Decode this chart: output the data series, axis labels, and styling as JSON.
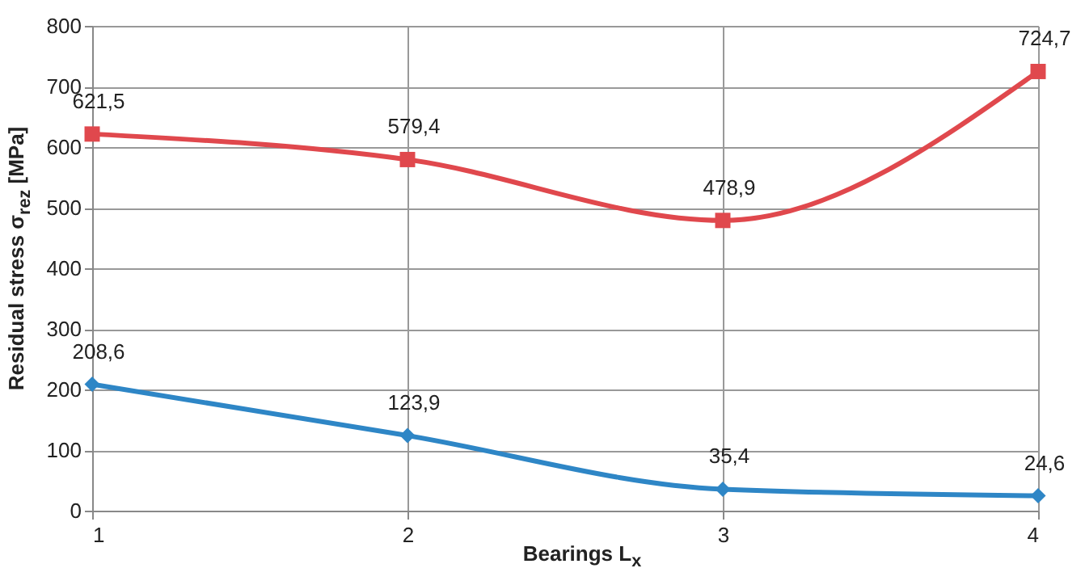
{
  "chart_data": {
    "type": "line",
    "xlabel": "Bearings L$_{x}$",
    "ylabel": "Residual stress σ$_{rez}$ [MPa]",
    "x": [
      1,
      2,
      3,
      4
    ],
    "xlim": [
      1,
      4
    ],
    "xticks": [
      1,
      2,
      3,
      4
    ],
    "ylim": [
      0,
      800
    ],
    "yticks": [
      0,
      100,
      200,
      300,
      400,
      500,
      600,
      700,
      800
    ],
    "grid": true,
    "series": [
      {
        "color": "#e0484d",
        "marker": "square",
        "values": [
          621.5,
          579.4,
          478.9,
          724.7
        ],
        "value_labels": [
          "621,5",
          "579,4",
          "478,9",
          "724,7"
        ]
      },
      {
        "color": "#2e86c6",
        "marker": "diamond",
        "values": [
          208.6,
          123.9,
          35.4,
          24.6
        ],
        "value_labels": [
          "208,6",
          "123,9",
          "35,4",
          "24,6"
        ]
      }
    ]
  }
}
